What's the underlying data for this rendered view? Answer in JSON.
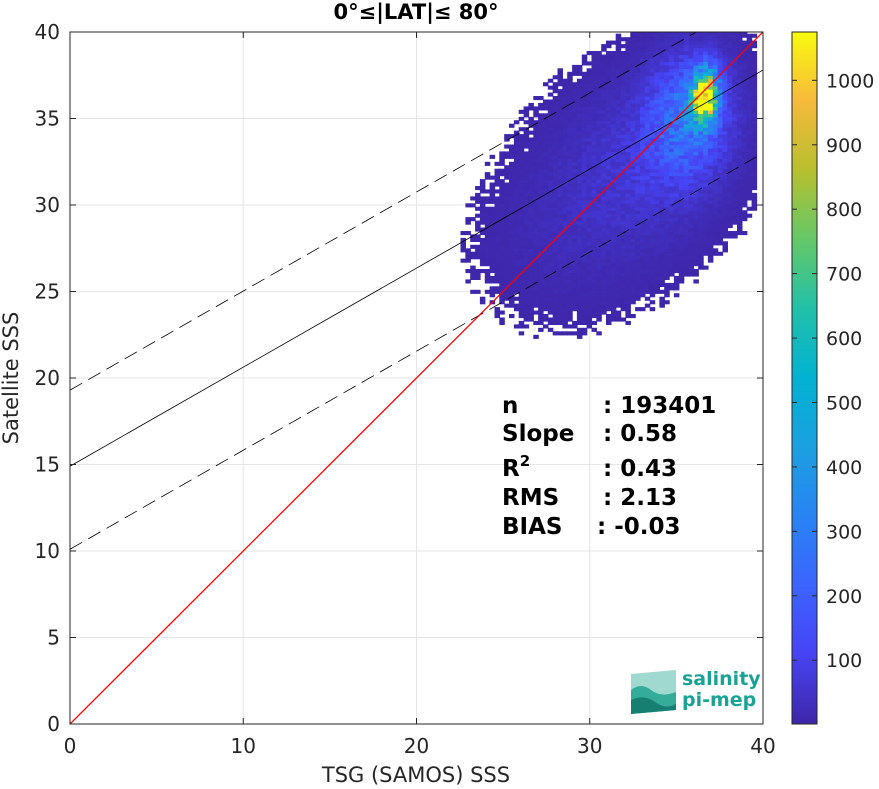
{
  "chart_data": {
    "type": "heatmap",
    "title": "0°≤|LAT|≤ 80°",
    "xlabel": "TSG (SAMOS) SSS",
    "ylabel": "Satellite SSS",
    "xlim": [
      0,
      40
    ],
    "ylim": [
      0,
      40
    ],
    "xticks": [
      0,
      10,
      20,
      30,
      40
    ],
    "yticks": [
      0,
      5,
      10,
      15,
      20,
      25,
      30,
      35,
      40
    ],
    "grid": true,
    "colorbar": {
      "range": [
        1,
        1075
      ],
      "ticks": [
        100,
        200,
        300,
        400,
        500,
        600,
        700,
        800,
        900,
        1000
      ],
      "colormap": "parula"
    },
    "lines": {
      "one_to_one": {
        "x": [
          0,
          40
        ],
        "y": [
          0,
          40
        ],
        "color": "#ff0000"
      },
      "fit": {
        "x": [
          0,
          40
        ],
        "y": [
          14.9,
          37.8
        ],
        "color": "#000000"
      },
      "fit_upper": {
        "x": [
          0,
          40
        ],
        "y": [
          19.3,
          42.2
        ],
        "style": "dashed"
      },
      "fit_lower": {
        "x": [
          0,
          40
        ],
        "y": [
          10.1,
          33.0
        ],
        "style": "dashed"
      }
    },
    "density_clusters": [
      {
        "x": 36.5,
        "y": 36.2,
        "sx": 0.5,
        "sy": 1.0,
        "peak": 1075
      },
      {
        "x": 35.5,
        "y": 35.0,
        "sx": 1.5,
        "sy": 2.2,
        "peak": 260
      },
      {
        "x": 33.0,
        "y": 32.5,
        "sx": 3.0,
        "sy": 3.0,
        "peak": 60
      },
      {
        "x": 29.0,
        "y": 28.5,
        "sx": 3.2,
        "sy": 3.0,
        "peak": 20
      }
    ],
    "stats": [
      {
        "label": "n",
        "value": ": 193401"
      },
      {
        "label": "Slope",
        "value": ": 0.58"
      },
      {
        "label": "R",
        "sup": "2",
        "value": ": 0.43"
      },
      {
        "label": "RMS",
        "value": ": 2.13"
      },
      {
        "label": "BIAS",
        "value": ": -0.03"
      }
    ]
  },
  "logo": {
    "line1": "salinity",
    "line2": "pi-mep"
  },
  "colors": {
    "one_to_one": "#ff0000",
    "fit": "#000000",
    "logo": "#1aa394",
    "grid": "#e6e6e6"
  }
}
